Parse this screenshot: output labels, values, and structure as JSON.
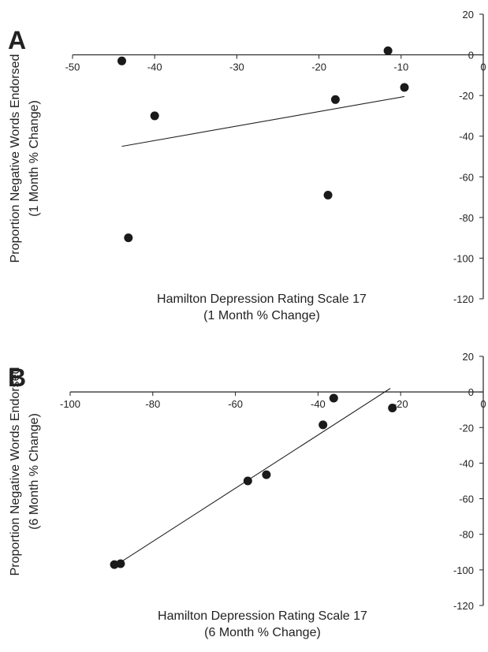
{
  "colors": {
    "axis": "#222222",
    "point": "#1a1a1a",
    "text": "#222222"
  },
  "chart_data": [
    {
      "panel_label": "A",
      "type": "scatter",
      "xlabel_line1": "Hamilton Depression Rating Scale 17",
      "xlabel_line2": "(1 Month % Change)",
      "ylabel_line1": "Proportion Negative Words Endorsed",
      "ylabel_line2": "(1 Month % Change)",
      "xlim": [
        -50,
        0
      ],
      "ylim": [
        -120,
        20
      ],
      "x_ticks": [
        -50,
        -40,
        -30,
        -20,
        -10,
        0
      ],
      "y_ticks": [
        20,
        0,
        -20,
        -40,
        -60,
        -80,
        -100,
        -120
      ],
      "x_tick_labels": [
        "-50",
        "-40",
        "-30",
        "-20",
        "-10",
        "0"
      ],
      "y_tick_labels": [
        "20",
        "0",
        "-20",
        "-40",
        "-60",
        "-80",
        "-100",
        "-120"
      ],
      "points": [
        {
          "x": -44.0,
          "y": -3
        },
        {
          "x": -40.0,
          "y": -30
        },
        {
          "x": -43.2,
          "y": -90
        },
        {
          "x": -18.9,
          "y": -69
        },
        {
          "x": -18.0,
          "y": -22
        },
        {
          "x": -11.6,
          "y": 2
        },
        {
          "x": -9.6,
          "y": -16
        }
      ],
      "trendline": {
        "x": [
          -44.0,
          -9.6
        ],
        "y": [
          -45,
          -20.5
        ]
      },
      "grid": false
    },
    {
      "panel_label": "B",
      "type": "scatter",
      "xlabel_line1": "Hamilton Depression Rating Scale 17",
      "xlabel_line2": "(6 Month % Change)",
      "ylabel_line1": "Proportion Negative Words Endorsed",
      "ylabel_line2": "(6 Month % Change)",
      "xlim": [
        -100,
        0
      ],
      "ylim": [
        -120,
        20
      ],
      "x_ticks": [
        -100,
        -80,
        -60,
        -40,
        -20,
        0
      ],
      "y_ticks": [
        20,
        0,
        -20,
        -40,
        -60,
        -80,
        -100,
        -120
      ],
      "x_tick_labels": [
        "-100",
        "-80",
        "-60",
        "-40",
        "-20",
        "0"
      ],
      "y_tick_labels": [
        "20",
        "0",
        "-20",
        "-40",
        "-60",
        "-80",
        "-100",
        "-120"
      ],
      "points": [
        {
          "x": -89.3,
          "y": -97
        },
        {
          "x": -87.8,
          "y": -96.5
        },
        {
          "x": -57.0,
          "y": -50
        },
        {
          "x": -52.5,
          "y": -46.5
        },
        {
          "x": -38.8,
          "y": -18.5
        },
        {
          "x": -36.2,
          "y": -3.5
        },
        {
          "x": -22.0,
          "y": -9
        }
      ],
      "trendline": {
        "x": [
          -88.0,
          -22.5
        ],
        "y": [
          -96,
          2
        ]
      },
      "grid": false
    }
  ]
}
